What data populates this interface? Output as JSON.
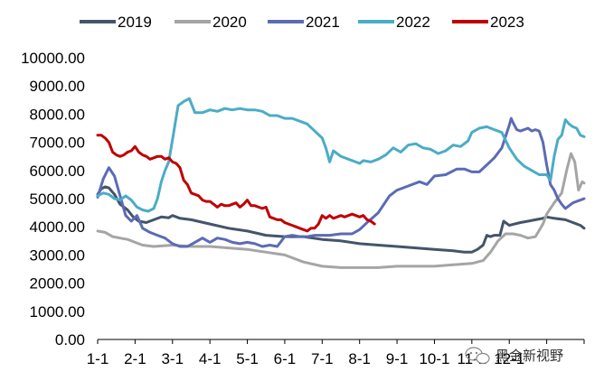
{
  "chart_data": {
    "type": "line",
    "title": "",
    "xlabel": "",
    "ylabel": "",
    "ylim": [
      0,
      10000
    ],
    "xlim": [
      0,
      13
    ],
    "yticks": [
      0,
      1000,
      2000,
      3000,
      4000,
      5000,
      6000,
      7000,
      8000,
      9000,
      10000
    ],
    "ytick_labels": [
      "0.00",
      "1000.00",
      "2000.00",
      "3000.00",
      "4000.00",
      "5000.00",
      "6000.00",
      "7000.00",
      "8000.00",
      "9000.00",
      "10000.00"
    ],
    "xtick_labels": [
      "1-1",
      "2-1",
      "3-1",
      "4-1",
      "5-1",
      "6-1",
      "7-1",
      "8-1",
      "9-1",
      "10-1",
      "11-1",
      "12-1"
    ],
    "legend_position": "top",
    "series": [
      {
        "name": "2019",
        "color": "#44546a",
        "x": [
          0,
          0.1,
          0.2,
          0.3,
          0.45,
          0.6,
          0.8,
          0.95,
          1.1,
          1.3,
          1.5,
          1.7,
          1.9,
          2.0,
          2.2,
          2.5,
          3.0,
          3.5,
          4.0,
          4.5,
          5.0,
          5.5,
          6.0,
          6.5,
          7.0,
          7.5,
          8.0,
          8.5,
          9.0,
          9.5,
          9.8,
          10.0,
          10.15,
          10.3,
          10.4,
          10.5,
          10.6,
          10.75,
          10.85,
          11.0,
          11.3,
          11.5,
          11.7,
          11.9,
          12.0,
          12.2,
          12.5,
          12.7,
          12.9,
          13.0
        ],
        "values": [
          5150,
          5350,
          5420,
          5380,
          5150,
          4800,
          4600,
          4350,
          4200,
          4150,
          4250,
          4350,
          4320,
          4400,
          4300,
          4250,
          4100,
          3950,
          3850,
          3700,
          3650,
          3650,
          3550,
          3500,
          3400,
          3350,
          3300,
          3250,
          3200,
          3150,
          3100,
          3100,
          3200,
          3350,
          3700,
          3650,
          3700,
          3700,
          4200,
          4050,
          4150,
          4200,
          4250,
          4300,
          4350,
          4300,
          4250,
          4150,
          4050,
          3950
        ]
      },
      {
        "name": "2020",
        "color": "#a5a5a5",
        "x": [
          0,
          0.2,
          0.4,
          0.6,
          0.8,
          1.0,
          1.2,
          1.5,
          2.0,
          2.5,
          3.0,
          3.5,
          4.0,
          4.5,
          5.0,
          5.5,
          6.0,
          6.5,
          7.0,
          7.5,
          8.0,
          8.5,
          9.0,
          9.5,
          10.0,
          10.3,
          10.5,
          10.7,
          10.9,
          11.1,
          11.3,
          11.5,
          11.7,
          11.9,
          12.0,
          12.2,
          12.4,
          12.55,
          12.65,
          12.75,
          12.85,
          12.95,
          13.0
        ],
        "values": [
          3850,
          3800,
          3650,
          3600,
          3550,
          3450,
          3350,
          3300,
          3350,
          3300,
          3300,
          3250,
          3200,
          3100,
          3000,
          2750,
          2600,
          2550,
          2550,
          2550,
          2600,
          2600,
          2600,
          2650,
          2700,
          2800,
          3100,
          3500,
          3750,
          3750,
          3700,
          3600,
          3650,
          4100,
          4450,
          4850,
          5200,
          6100,
          6600,
          6300,
          5300,
          5600,
          5550
        ]
      },
      {
        "name": "2021",
        "color": "#5b6bb5",
        "x": [
          0,
          0.15,
          0.3,
          0.45,
          0.6,
          0.75,
          0.9,
          1.05,
          1.2,
          1.4,
          1.6,
          1.8,
          2.0,
          2.2,
          2.4,
          2.6,
          2.8,
          3.0,
          3.2,
          3.4,
          3.6,
          3.8,
          4.0,
          4.2,
          4.4,
          4.6,
          4.8,
          5.0,
          5.2,
          5.4,
          5.6,
          5.8,
          6.0,
          6.2,
          6.5,
          6.8,
          7.0,
          7.2,
          7.5,
          7.8,
          8.0,
          8.3,
          8.6,
          8.8,
          9.0,
          9.3,
          9.6,
          9.8,
          10.0,
          10.2,
          10.4,
          10.6,
          10.8,
          11.0,
          11.05,
          11.1,
          11.2,
          11.3,
          11.4,
          11.5,
          11.6,
          11.7,
          11.8,
          11.9,
          12.0,
          12.1,
          12.2,
          12.3,
          12.4,
          12.5,
          12.6,
          12.7,
          12.8,
          12.9,
          13.0
        ],
        "values": [
          5050,
          5700,
          6100,
          5800,
          5100,
          4400,
          4200,
          4400,
          3950,
          3800,
          3700,
          3600,
          3400,
          3300,
          3300,
          3450,
          3600,
          3450,
          3600,
          3550,
          3450,
          3400,
          3450,
          3400,
          3300,
          3350,
          3300,
          3650,
          3700,
          3650,
          3650,
          3700,
          3700,
          3700,
          3750,
          3750,
          3900,
          4150,
          4500,
          5100,
          5300,
          5450,
          5600,
          5500,
          5800,
          5850,
          6050,
          6050,
          5950,
          5950,
          6200,
          6450,
          6800,
          7600,
          7850,
          7700,
          7450,
          7400,
          7450,
          7500,
          7400,
          7450,
          7400,
          7000,
          6200,
          5500,
          5300,
          5000,
          4800,
          4650,
          4750,
          4850,
          4900,
          4950,
          5000
        ]
      },
      {
        "name": "2022",
        "color": "#4bacc6",
        "x": [
          0,
          0.15,
          0.3,
          0.45,
          0.6,
          0.75,
          0.9,
          1.05,
          1.2,
          1.35,
          1.5,
          1.6,
          1.7,
          1.8,
          1.9,
          2.0,
          2.15,
          2.3,
          2.45,
          2.6,
          2.8,
          3.0,
          3.2,
          3.4,
          3.6,
          3.8,
          4.0,
          4.2,
          4.4,
          4.6,
          4.8,
          5.0,
          5.2,
          5.4,
          5.6,
          5.8,
          6.0,
          6.1,
          6.2,
          6.3,
          6.5,
          6.7,
          6.9,
          7.0,
          7.1,
          7.3,
          7.5,
          7.7,
          7.9,
          8.1,
          8.3,
          8.5,
          8.7,
          8.9,
          9.1,
          9.3,
          9.5,
          9.7,
          9.9,
          10.0,
          10.2,
          10.4,
          10.6,
          10.8,
          11.0,
          11.2,
          11.4,
          11.6,
          11.8,
          12.0,
          12.1,
          12.2,
          12.3,
          12.4,
          12.5,
          12.6,
          12.7,
          12.8,
          12.9,
          13.0
        ],
        "values": [
          5100,
          5200,
          5150,
          5000,
          4950,
          5100,
          4950,
          4700,
          4600,
          4550,
          4650,
          5000,
          5600,
          6000,
          6300,
          7100,
          8300,
          8450,
          8550,
          8050,
          8050,
          8150,
          8100,
          8200,
          8150,
          8200,
          8150,
          8150,
          8100,
          7950,
          7950,
          7850,
          7850,
          7750,
          7650,
          7400,
          7150,
          6800,
          6300,
          6700,
          6500,
          6400,
          6300,
          6250,
          6350,
          6300,
          6400,
          6550,
          6800,
          6650,
          6900,
          6950,
          6800,
          6750,
          6600,
          6700,
          6900,
          6850,
          7050,
          7350,
          7500,
          7550,
          7450,
          7350,
          6800,
          6400,
          6150,
          6000,
          5850,
          5850,
          5650,
          6500,
          7100,
          7250,
          7800,
          7650,
          7550,
          7500,
          7250,
          7200
        ]
      },
      {
        "name": "2023",
        "color": "#c00000",
        "x": [
          0,
          0.1,
          0.2,
          0.3,
          0.4,
          0.5,
          0.6,
          0.7,
          0.8,
          0.9,
          1.0,
          1.1,
          1.2,
          1.3,
          1.4,
          1.5,
          1.6,
          1.7,
          1.8,
          1.9,
          2.0,
          2.1,
          2.2,
          2.3,
          2.4,
          2.5,
          2.6,
          2.7,
          2.8,
          2.9,
          3.0,
          3.1,
          3.2,
          3.3,
          3.4,
          3.5,
          3.6,
          3.7,
          3.8,
          3.9,
          4.0,
          4.1,
          4.2,
          4.3,
          4.4,
          4.5,
          4.6,
          4.7,
          4.8,
          4.9,
          5.0,
          5.1,
          5.2,
          5.3,
          5.4,
          5.5,
          5.6,
          5.7,
          5.8,
          5.9,
          6.0,
          6.1,
          6.2,
          6.3,
          6.4,
          6.5,
          6.6,
          6.7,
          6.8,
          6.9,
          7.0,
          7.1,
          7.2,
          7.3,
          7.4
        ],
        "values": [
          7250,
          7250,
          7150,
          7000,
          6650,
          6550,
          6500,
          6550,
          6650,
          6700,
          6850,
          6650,
          6550,
          6500,
          6400,
          6450,
          6500,
          6500,
          6400,
          6450,
          6300,
          6250,
          6100,
          5650,
          5500,
          5200,
          5150,
          5100,
          4950,
          4900,
          4900,
          4800,
          4700,
          4800,
          4750,
          4750,
          4800,
          4850,
          4700,
          4800,
          4950,
          4750,
          4750,
          4700,
          4650,
          4700,
          4350,
          4300,
          4250,
          4250,
          4150,
          4100,
          4050,
          4000,
          3950,
          3900,
          3850,
          3950,
          3950,
          4100,
          4400,
          4300,
          4400,
          4300,
          4350,
          4400,
          4350,
          4400,
          4450,
          4400,
          4350,
          4400,
          4250,
          4200,
          4100
        ]
      }
    ]
  },
  "watermark": {
    "text": "黑金新视野",
    "icon": "wechat-icon"
  }
}
